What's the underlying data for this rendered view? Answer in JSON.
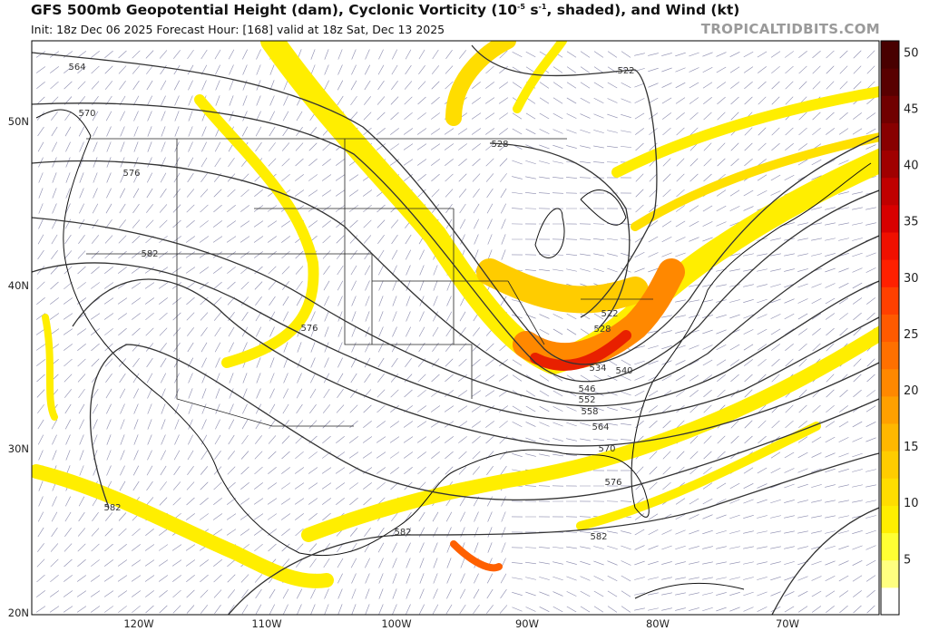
{
  "header": {
    "title_prefix": "GFS 500mb Geopotential Height (dam), Cyclonic Vorticity (10",
    "title_exp1": "-5",
    "title_mid": " s",
    "title_exp2": "-1",
    "title_suffix": ", shaded), and Wind (kt)",
    "subtitle": "Init: 18z Dec 06 2025   Forecast Hour: [168]   valid at 18z Sat, Dec 13 2025",
    "brand": "TROPICALTIDBITS.COM"
  },
  "axes": {
    "longitude_labels": [
      "120W",
      "110W",
      "100W",
      "90W",
      "80W",
      "70W"
    ],
    "latitude_labels": [
      "50N",
      "40N",
      "30N",
      "20N"
    ]
  },
  "contour_labels": [
    "564",
    "570",
    "576",
    "582",
    "522",
    "528",
    "534",
    "540",
    "546",
    "552",
    "558",
    "564",
    "570",
    "576",
    "582",
    "576",
    "582",
    "582",
    "522",
    "528"
  ],
  "colorbar": {
    "ticks": [
      "5",
      "10",
      "15",
      "20",
      "25",
      "30",
      "35",
      "40",
      "45",
      "50"
    ],
    "min": 1,
    "max": 51,
    "colors": [
      "#ffffff",
      "#ffff80",
      "#ffff33",
      "#ffee00",
      "#ffdd00",
      "#ffcc00",
      "#ffb700",
      "#ffa000",
      "#ff8800",
      "#ff7000",
      "#ff5a00",
      "#ff4000",
      "#ff2000",
      "#f01000",
      "#d80000",
      "#c00000",
      "#a00000",
      "#880000",
      "#700000",
      "#580000",
      "#480000"
    ]
  },
  "colors": {
    "vorticity_low": "#ffee00",
    "vorticity_mid": "#ff9900",
    "vorticity_high": "#d81000",
    "contour": "#333333",
    "wind_barb": "#2a2a6a"
  }
}
